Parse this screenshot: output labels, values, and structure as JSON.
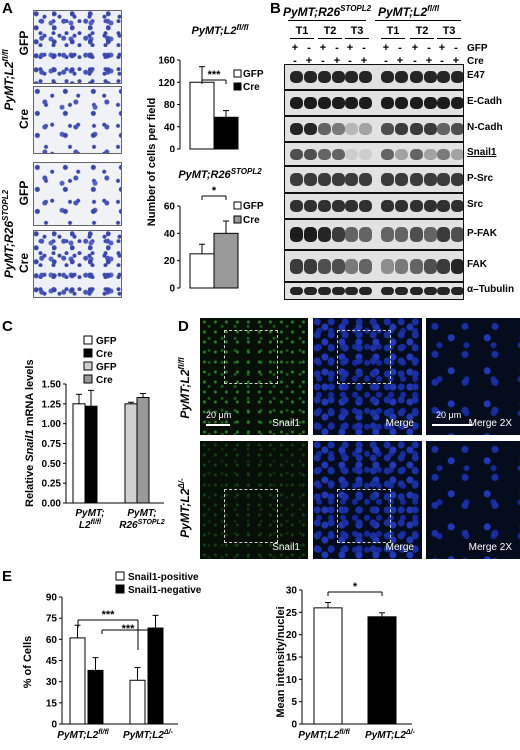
{
  "panels": {
    "a": "A",
    "b": "B",
    "c": "C",
    "d": "D",
    "e": "E"
  },
  "genotypes": {
    "l2": "PyMT;L2",
    "l2_sup": "fl/fl",
    "r26": "PyMT;R26",
    "r26_sup": "STOPL2",
    "l2d_sup": "Δ/-"
  },
  "panel_a": {
    "image_labels": [
      "GFP",
      "Cre",
      "GFP",
      "Cre"
    ],
    "ylabel": "Number of cells per field",
    "sig_top": "***",
    "sig_bottom": "*"
  },
  "panel_b": {
    "group_labels": [
      "T1",
      "T2",
      "T3",
      "T1",
      "T2",
      "T3"
    ],
    "row_labels": [
      "GFP",
      "Cre"
    ],
    "pm_gfp": [
      "+",
      "-",
      "+",
      "-",
      "+",
      "-",
      "+",
      "-",
      "+",
      "-",
      "+",
      "-"
    ],
    "pm_cre": [
      "-",
      "+",
      "-",
      "+",
      "-",
      "+",
      "-",
      "+",
      "-",
      "+",
      "-",
      "+"
    ],
    "proteins": [
      "E47",
      "E-Cadh",
      "N-Cadh",
      "Snail1",
      "P-Src",
      "Src",
      "P-FAK",
      "FAK",
      "α–Tubulin"
    ]
  },
  "panel_c": {
    "ylabel_pre": "Relative ",
    "ylabel_gene": "Snail1",
    "ylabel_post": " mRNA levels"
  },
  "panel_d": {
    "channel_labels": [
      "Snail1",
      "Merge",
      "Merge 2X"
    ],
    "scale_labels": [
      "20 μm",
      "20 μm"
    ]
  },
  "panel_e": {
    "left_ylabel": "% of Cells",
    "right_ylabel": "Mean intensity/nuclei",
    "sig_left": "***",
    "sig_left2": "***",
    "sig_right": "*"
  },
  "chart_data": [
    {
      "panel": "A-top",
      "type": "bar",
      "title": "PyMT;L2fl/fl",
      "categories": [
        "GFP",
        "Cre"
      ],
      "values": [
        120,
        57
      ],
      "errors": [
        28,
        12
      ],
      "ylim": [
        0,
        160
      ],
      "yticks": [
        0,
        40,
        80,
        120,
        160
      ],
      "legend": [
        "GFP",
        "Cre"
      ],
      "colors": [
        "#ffffff",
        "#000000"
      ]
    },
    {
      "panel": "A-bottom",
      "type": "bar",
      "title": "PyMT;R26STOPL2",
      "categories": [
        "GFP",
        "Cre"
      ],
      "values": [
        25,
        40
      ],
      "errors": [
        7,
        9
      ],
      "ylim": [
        0,
        60
      ],
      "yticks": [
        0,
        20,
        40,
        60
      ],
      "legend": [
        "GFP",
        "Cre"
      ],
      "colors": [
        "#ffffff",
        "#999999"
      ]
    },
    {
      "panel": "C",
      "type": "bar",
      "categories": [
        "PyMT;L2fl/fl",
        "PyMT;R26STOPL2"
      ],
      "series": [
        {
          "name": "GFP",
          "values": [
            1.25,
            null
          ],
          "errors": [
            0.12,
            null
          ],
          "color": "#ffffff"
        },
        {
          "name": "Cre",
          "values": [
            1.22,
            null
          ],
          "errors": [
            0.2,
            null
          ],
          "color": "#000000"
        },
        {
          "name": "GFP",
          "values": [
            null,
            1.25
          ],
          "errors": [
            null,
            0.02
          ],
          "color": "#d0d0d0"
        },
        {
          "name": "Cre",
          "values": [
            null,
            1.33
          ],
          "errors": [
            null,
            0.05
          ],
          "color": "#999999"
        }
      ],
      "ylim": [
        0,
        1.5
      ],
      "yticks": [
        0,
        0.25,
        0.5,
        0.75,
        1,
        1.25,
        1.5
      ]
    },
    {
      "panel": "E-left",
      "type": "bar",
      "categories": [
        "PyMT;L2fl/fl",
        "PyMT;L2Δ/-"
      ],
      "series": [
        {
          "name": "Snail1-positive",
          "values": [
            61,
            31
          ],
          "errors": [
            9,
            9
          ],
          "color": "#ffffff"
        },
        {
          "name": "Snail1-negative",
          "values": [
            38,
            68
          ],
          "errors": [
            9,
            9
          ],
          "color": "#000000"
        }
      ],
      "ylim": [
        0,
        90
      ],
      "yticks": [
        0,
        15,
        30,
        45,
        60,
        75,
        90
      ]
    },
    {
      "panel": "E-right",
      "type": "bar",
      "categories": [
        "PyMT;L2fl/fl",
        "PyMT;L2Δ/-"
      ],
      "values": [
        26,
        24
      ],
      "errors": [
        1.2,
        0.9
      ],
      "colors": [
        "#ffffff",
        "#000000"
      ],
      "ylim": [
        0,
        30
      ],
      "yticks": [
        0,
        5,
        10,
        15,
        20,
        25,
        30
      ]
    }
  ]
}
